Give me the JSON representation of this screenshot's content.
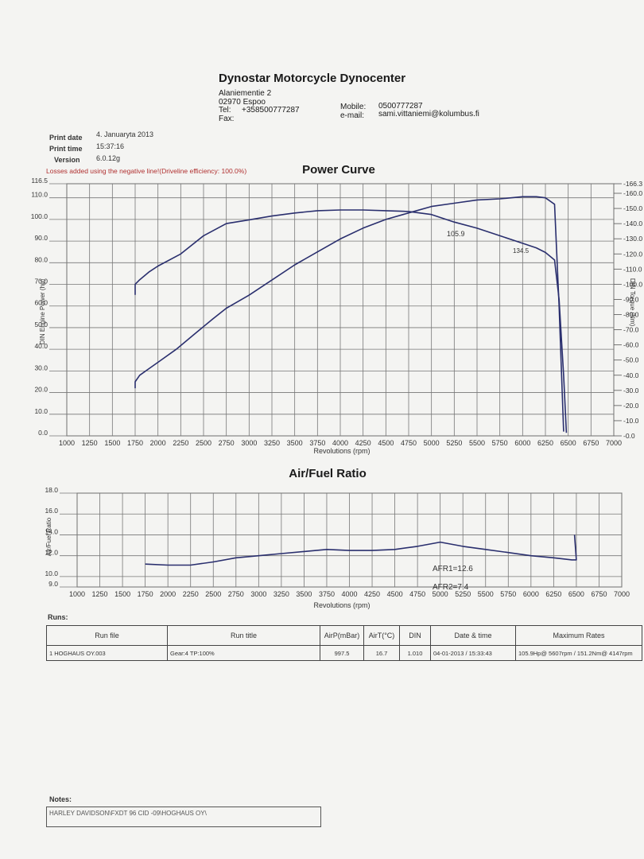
{
  "header": {
    "company": "Dynostar Motorcycle Dynocenter",
    "address1": "Alaniementie 2",
    "address2": "02970  Espoo",
    "tel_label": "Tel:",
    "tel": "+358500777287",
    "fax_label": "Fax:",
    "mobile_label": "Mobile:",
    "mobile": "0500777287",
    "email_label": "e-mail:",
    "email": "sami.vittaniemi@kolumbus.fi"
  },
  "meta": {
    "print_date_label": "Print date",
    "print_date": "4. Januaryta 2013",
    "print_time_label": "Print time",
    "print_time": "15:37:16",
    "version_label": "Version",
    "version": "6.0.12g",
    "losses_note": "Losses added using the negative line!(Driveline efficiency: 100.0%)"
  },
  "chart_data": [
    {
      "type": "line",
      "title": "Power Curve",
      "xlabel": "Revolutions (rpm)",
      "ylabel": "DIN Engine Power (hp)",
      "y2label": "DIN Torque (Nm)",
      "xlim": [
        1000,
        7000
      ],
      "ylim": [
        0,
        116.5
      ],
      "y2lim": [
        0,
        166.3
      ],
      "x_ticks": [
        "1000",
        "1250",
        "1500",
        "1750",
        "2000",
        "2250",
        "2500",
        "2750",
        "3000",
        "3250",
        "3500",
        "3750",
        "4000",
        "4250",
        "4500",
        "4750",
        "5000",
        "5250",
        "5500",
        "5750",
        "6000",
        "6250",
        "6500",
        "6750",
        "7000"
      ],
      "y_ticks": [
        "0.0",
        "10.0",
        "20.0",
        "30.0",
        "40.0",
        "50.0",
        "60.0",
        "70.0",
        "80.0",
        "90.0",
        "100.0",
        "110.0",
        "116.5"
      ],
      "y2_ticks": [
        "0.0",
        "10.0",
        "20.0",
        "30.0",
        "40.0",
        "50.0",
        "60.0",
        "70.0",
        "80.0",
        "90.0",
        "100.0",
        "110.0",
        "120.0",
        "130.0",
        "140.0",
        "150.0",
        "160.0",
        "166.3"
      ],
      "annotations": [
        "105.9",
        "134.5"
      ],
      "grid": true,
      "series": [
        {
          "axis": "left",
          "color": "#2a2f6e",
          "x": [
            1750,
            1750,
            1800,
            1900,
            2000,
            2200,
            2400,
            2600,
            2750,
            3000,
            3250,
            3500,
            3750,
            4000,
            4250,
            4500,
            4750,
            5000,
            5250,
            5500,
            5750,
            6000,
            6150,
            6250,
            6350,
            6400,
            6450
          ],
          "y": [
            22,
            25,
            28,
            31,
            34,
            40,
            47,
            54,
            59,
            65,
            72,
            79,
            85,
            91,
            96,
            100,
            103,
            106,
            107.5,
            109,
            109.5,
            110.5,
            110.5,
            110,
            107,
            60,
            2
          ]
        },
        {
          "axis": "right",
          "color": "#2a2f6e",
          "x": [
            1750,
            1750,
            1800,
            1900,
            2000,
            2250,
            2500,
            2750,
            3000,
            3250,
            3500,
            3750,
            4000,
            4250,
            4500,
            4750,
            5000,
            5250,
            5500,
            5750,
            6000,
            6150,
            6250,
            6350,
            6400,
            6450,
            6480
          ],
          "y": [
            93,
            100,
            103,
            108,
            112,
            120,
            132,
            140,
            142.5,
            145,
            147,
            148.5,
            149,
            149,
            148.5,
            148,
            146,
            141,
            137,
            132,
            127,
            124,
            121,
            116,
            90,
            40,
            2
          ]
        }
      ]
    },
    {
      "type": "line",
      "title": "Air/Fuel Ratio",
      "xlabel": "Revolutions (rpm)",
      "ylabel": "Air/Fuel Ratio",
      "xlim": [
        1000,
        7000
      ],
      "ylim": [
        9,
        18
      ],
      "x_ticks": [
        "1000",
        "1250",
        "1500",
        "1750",
        "2000",
        "2250",
        "2500",
        "2750",
        "3000",
        "3250",
        "3500",
        "3750",
        "4000",
        "4250",
        "4500",
        "4750",
        "5000",
        "5250",
        "5500",
        "5750",
        "6000",
        "6250",
        "6500",
        "6750",
        "7000"
      ],
      "y_ticks": [
        "9.0",
        "10.0",
        "12.0",
        "14.0",
        "16.0",
        "18.0"
      ],
      "annotations": [
        "AFR1=12.6",
        "AFR2=7.4"
      ],
      "grid": true,
      "series": [
        {
          "color": "#2a2f6e",
          "x": [
            1750,
            2000,
            2250,
            2500,
            2750,
            3000,
            3250,
            3500,
            3750,
            4000,
            4250,
            4500,
            4750,
            5000,
            5250,
            5500,
            5750,
            6000,
            6250,
            6450,
            6500,
            6480
          ],
          "y": [
            11.2,
            11.1,
            11.1,
            11.4,
            11.8,
            12.0,
            12.2,
            12.4,
            12.6,
            12.5,
            12.5,
            12.6,
            12.9,
            13.3,
            12.9,
            12.6,
            12.3,
            12.0,
            11.8,
            11.6,
            11.6,
            14.0
          ]
        }
      ]
    }
  ],
  "runs": {
    "label": "Runs:",
    "columns": [
      "Run file",
      "Run title",
      "AirP(mBar)",
      "AirT(°C)",
      "DIN",
      "Date & time",
      "Maximum Rates"
    ],
    "rows": [
      [
        "1  HOGHAUS OY.003",
        "Gear:4 TP:100%",
        "997.5",
        "16.7",
        "1.010",
        "04-01-2013 / 15:33:43",
        "105.9Hp@ 5607rpm / 151.2Nm@ 4147rpm"
      ]
    ]
  },
  "notes": {
    "label": "Notes:",
    "text": "HARLEY DAVIDSON\\FXDT 96 CID -09\\HOGHAUS OY\\"
  }
}
